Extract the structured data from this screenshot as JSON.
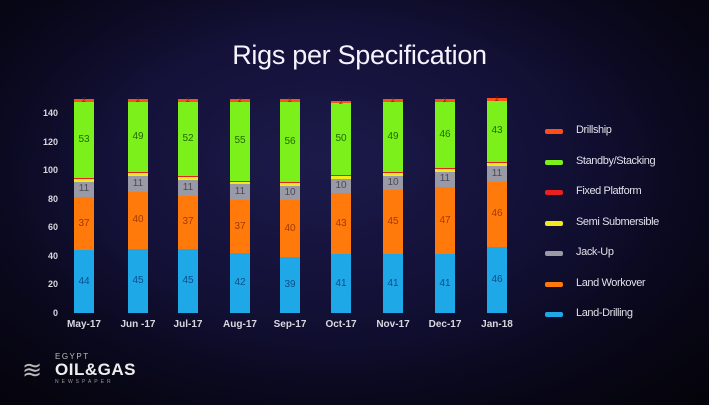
{
  "title": "Rigs per Specification",
  "chart_data": {
    "type": "bar",
    "stacked": true,
    "title": "Rigs per Specification",
    "xlabel": "",
    "ylabel": "",
    "ylim": [
      0,
      140
    ],
    "yticks": [
      "0",
      "20",
      "40",
      "60",
      "80",
      "100",
      "120",
      "140"
    ],
    "grid": false,
    "legend_position": "right",
    "categories": [
      "May-17",
      "Jun -17",
      "Jul-17",
      "Aug-17",
      "Sep-17",
      "Oct-17",
      "Nov-17",
      "Dec-17",
      "Jan-18"
    ],
    "series": [
      {
        "name": "Land-Drilling",
        "color": "#1ea8e8",
        "values": [
          44,
          45,
          45,
          42,
          39,
          41,
          41,
          41,
          46
        ]
      },
      {
        "name": "Land Workover",
        "color": "#ff7a0a",
        "values": [
          37,
          40,
          37,
          37,
          40,
          43,
          45,
          47,
          46
        ]
      },
      {
        "name": "Jack-Up",
        "color": "#9a9aa6",
        "values": [
          11,
          11,
          11,
          11,
          10,
          10,
          10,
          11,
          11
        ]
      },
      {
        "name": "Semi Submersible",
        "color": "#f2ea1c",
        "values": [
          1,
          1,
          1,
          1,
          0,
          1,
          1,
          1,
          0
        ]
      },
      {
        "name": "Fixed Platform",
        "color": "#e82020",
        "values": [
          0,
          0,
          0,
          0,
          0,
          0,
          0,
          0,
          0
        ]
      },
      {
        "name": "Standby/Stacking",
        "color": "#7cf01a",
        "values": [
          53,
          49,
          52,
          55,
          56,
          50,
          49,
          46,
          43
        ]
      },
      {
        "name": "Drillship",
        "color": "#ff4e1e",
        "values": [
          2,
          2,
          2,
          2,
          2,
          2,
          2,
          2,
          2
        ]
      }
    ]
  },
  "legend": [
    {
      "label": "Drillship",
      "color": "#ff4e1e"
    },
    {
      "label": "Standby/Stacking",
      "color": "#7cf01a"
    },
    {
      "label": "Fixed Platform",
      "color": "#e82020"
    },
    {
      "label": "Semi Submersible",
      "color": "#f2ea1c"
    },
    {
      "label": "Jack-Up",
      "color": "#9a9aa6"
    },
    {
      "label": "Land Workover",
      "color": "#ff7a0a"
    },
    {
      "label": "Land-Drilling",
      "color": "#1ea8e8"
    }
  ],
  "logo": {
    "line1": "EGYPT",
    "line2": "OIL&GAS",
    "line3": "NEWSPAPER"
  }
}
